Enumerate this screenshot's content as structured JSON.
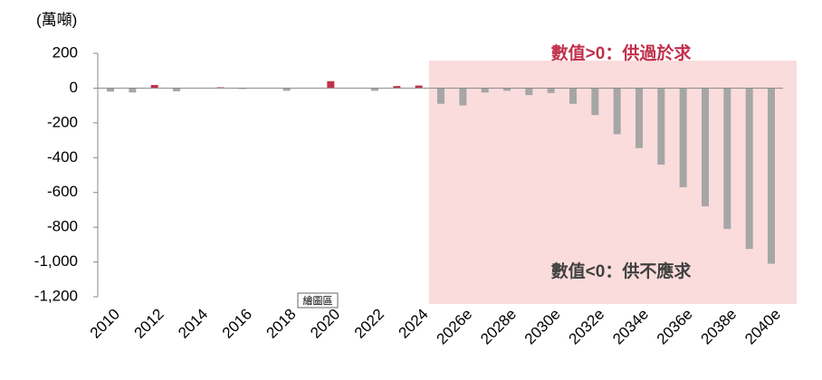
{
  "chart_data": {
    "type": "bar",
    "y_unit_label": "(萬噸)",
    "annotations": [
      "數值>0：供過於求",
      "數值<0：供不應求"
    ],
    "tooltip": "繪圖區",
    "categories": [
      "2010",
      null,
      "2012",
      null,
      "2014",
      null,
      "2016",
      null,
      "2018",
      null,
      "2020",
      null,
      "2022",
      null,
      "2024",
      null,
      "2026e",
      null,
      "2028e",
      null,
      "2030e",
      null,
      "2032e",
      null,
      "2034e",
      null,
      "2036e",
      null,
      "2038e",
      null,
      "2040e"
    ],
    "values": [
      -20,
      -25,
      18,
      -18,
      0,
      5,
      -5,
      0,
      -15,
      0,
      40,
      0,
      -15,
      12,
      15,
      -90,
      -100,
      -25,
      -15,
      -40,
      -28,
      -90,
      -155,
      -265,
      -345,
      -440,
      -570,
      -680,
      -810,
      -925,
      -1010
    ],
    "positive_color": "#c0304a",
    "negative_color": "#a6a6a6",
    "ylim": [
      -1200,
      200
    ],
    "yticks": [
      200,
      0,
      -200,
      -400,
      -600,
      -800,
      {
        "value": -1000,
        "label": "-1,000"
      },
      {
        "value": -1200,
        "label": "-1,200"
      }
    ]
  }
}
